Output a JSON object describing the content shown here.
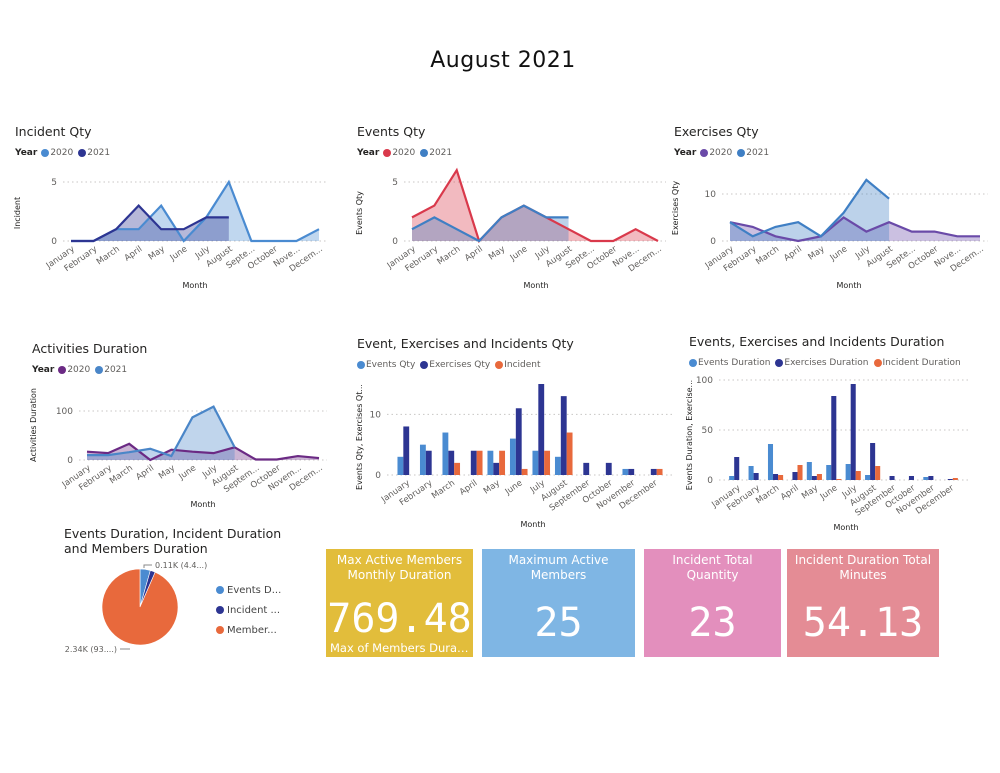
{
  "page": {
    "title": "August 2021"
  },
  "months": [
    "January",
    "February",
    "March",
    "April",
    "May",
    "June",
    "July",
    "August",
    "September",
    "October",
    "November",
    "December"
  ],
  "chart_data": [
    {
      "id": "incident",
      "type": "area",
      "title": "Incident Qty",
      "legend_title": "Year",
      "xlabel": "Month",
      "ylabel": "Incident",
      "x": [
        "January",
        "February",
        "March",
        "April",
        "May",
        "June",
        "July",
        "August",
        "Septe...",
        "October",
        "Nove...",
        "Decem..."
      ],
      "yticks": [
        0,
        5
      ],
      "ylim": [
        0,
        5
      ],
      "grid": true,
      "legend": "top-left",
      "series": [
        {
          "name": "2020",
          "color": "#4a8bd1",
          "values": [
            0,
            0,
            1,
            1,
            3,
            0,
            2,
            5,
            0,
            0,
            0,
            1
          ]
        },
        {
          "name": "2021",
          "color": "#2d3592",
          "values": [
            0,
            0,
            1,
            3,
            1,
            1,
            2,
            2,
            null,
            null,
            null,
            null
          ]
        }
      ]
    },
    {
      "id": "events",
      "type": "area",
      "title": "Events Qty",
      "legend_title": "Year",
      "xlabel": "Month",
      "ylabel": "Events Qty",
      "x": [
        "January",
        "February",
        "March",
        "April",
        "May",
        "June",
        "July",
        "August",
        "Septe...",
        "October",
        "Nove...",
        "Decem..."
      ],
      "yticks": [
        0,
        5
      ],
      "ylim": [
        0,
        5
      ],
      "grid": true,
      "legend": "top-left",
      "series": [
        {
          "name": "2020",
          "color": "#d9394b",
          "values": [
            2,
            3,
            6,
            0,
            2,
            3,
            2,
            1,
            0,
            0,
            1,
            0
          ]
        },
        {
          "name": "2021",
          "color": "#3f7fc4",
          "values": [
            1,
            2,
            1,
            0,
            2,
            3,
            2,
            2,
            null,
            null,
            null,
            null
          ]
        }
      ]
    },
    {
      "id": "exercises",
      "type": "area",
      "title": "Exercises Qty",
      "legend_title": "Year",
      "xlabel": "Month",
      "ylabel": "Exercises Qty",
      "x": [
        "January",
        "February",
        "March",
        "April",
        "May",
        "June",
        "July",
        "August",
        "Septe...",
        "October",
        "Nove...",
        "Decem..."
      ],
      "yticks": [
        0,
        10
      ],
      "ylim": [
        0,
        10
      ],
      "grid": true,
      "legend": "top-left",
      "series": [
        {
          "name": "2020",
          "color": "#6a4aa8",
          "values": [
            4,
            3,
            1,
            0,
            1,
            5,
            2,
            4,
            2,
            2,
            1,
            1
          ]
        },
        {
          "name": "2021",
          "color": "#3f7fc4",
          "values": [
            4,
            1,
            3,
            4,
            1,
            6,
            13,
            9,
            null,
            null,
            null,
            null
          ]
        }
      ]
    },
    {
      "id": "activities",
      "type": "area",
      "title": "Activities Duration",
      "legend_title": "Year",
      "xlabel": "Month",
      "ylabel": "Activities Duration",
      "x": [
        "January",
        "February",
        "March",
        "April",
        "May",
        "June",
        "July",
        "August",
        "Septem...",
        "October",
        "Novem...",
        "Decem..."
      ],
      "yticks": [
        0,
        100
      ],
      "ylim": [
        0,
        100
      ],
      "grid": true,
      "legend": "top-left",
      "series": [
        {
          "name": "2020",
          "color": "#6b2a84",
          "values": [
            17,
            14,
            33,
            0,
            21,
            17,
            14,
            26,
            1,
            1,
            8,
            4
          ]
        },
        {
          "name": "2021",
          "color": "#4a86c8",
          "values": [
            10,
            10,
            16,
            23,
            8,
            87,
            109,
            26,
            null,
            null,
            null,
            null
          ]
        }
      ]
    },
    {
      "id": "qty-bars",
      "type": "bar",
      "title": "Event, Exercises and Incidents Qty",
      "xlabel": "Month",
      "ylabel": "Events Qty, Exercises Qt...",
      "categories": [
        "January",
        "February",
        "March",
        "April",
        "May",
        "June",
        "July",
        "August",
        "September",
        "October",
        "November",
        "December"
      ],
      "yticks": [
        0,
        10
      ],
      "ylim": [
        0,
        15
      ],
      "grid": true,
      "legend": "top-left",
      "series": [
        {
          "name": "Events Qty",
          "color": "#4a8bd1",
          "values": [
            3,
            5,
            7,
            0,
            4,
            6,
            4,
            3,
            0,
            0,
            1,
            0
          ]
        },
        {
          "name": "Exercises Qty",
          "color": "#2d3592",
          "values": [
            8,
            4,
            4,
            4,
            2,
            11,
            15,
            13,
            2,
            2,
            1,
            1
          ]
        },
        {
          "name": "Incident",
          "color": "#e8693c",
          "values": [
            0,
            0,
            2,
            4,
            4,
            1,
            4,
            7,
            0,
            0,
            0,
            1
          ]
        }
      ]
    },
    {
      "id": "duration-bars",
      "type": "bar",
      "title": "Events, Exercises and Incidents Duration",
      "xlabel": "Month",
      "ylabel": "Events Duration, Exercise...",
      "categories": [
        "January",
        "February",
        "March",
        "April",
        "May",
        "June",
        "July",
        "August",
        "September",
        "October",
        "November",
        "December"
      ],
      "yticks": [
        0,
        50,
        100
      ],
      "ylim": [
        0,
        100
      ],
      "grid": true,
      "legend": "top-left",
      "series": [
        {
          "name": "Events Duration",
          "color": "#4a8bd1",
          "values": [
            4,
            14,
            36,
            0,
            18,
            15,
            16,
            5,
            0,
            0,
            3,
            0
          ]
        },
        {
          "name": "Exercises Duration",
          "color": "#2d3592",
          "values": [
            23,
            7,
            6,
            8,
            4,
            84,
            96,
            37,
            4,
            4,
            4,
            1
          ]
        },
        {
          "name": "Incident Duration",
          "color": "#e8693c",
          "values": [
            0,
            0,
            5,
            15,
            6,
            1,
            9,
            14,
            0,
            0,
            0,
            2
          ]
        }
      ]
    },
    {
      "id": "duration-pie",
      "type": "pie",
      "title": "Events Duration, Incident Duration and Members Duration",
      "title_lines": [
        "Events Duration, Incident Duration",
        "and Members Duration"
      ],
      "legend": "right",
      "slices": [
        {
          "name": "Events Duration",
          "legend_label": "Events D...",
          "color": "#4a8bd1",
          "value": 110,
          "percent": 4.4
        },
        {
          "name": "Incident Duration",
          "legend_label": "Incident ...",
          "color": "#2d3592",
          "value": 54,
          "percent": 2.2
        },
        {
          "name": "Members Duration",
          "legend_label": "Member...",
          "color": "#e8693c",
          "value": 2340,
          "percent": 93.4
        }
      ],
      "data_labels": [
        {
          "slice": "Events Duration",
          "text": "0.11K (4.4...)"
        },
        {
          "slice": "Members Duration",
          "text": "2.34K (93....)"
        }
      ]
    }
  ],
  "cards": [
    {
      "id": "max-active-members-duration",
      "title": "Max Active Members Monthly Duration",
      "value": "769.48",
      "subtitle": "Max of Members Durati...",
      "color": "#e2bd3b"
    },
    {
      "id": "max-active-members",
      "title": "Maximum Active Members",
      "value": "25",
      "subtitle": "",
      "color": "#7fb6e4"
    },
    {
      "id": "incident-total-qty",
      "title": "Incident Total Quantity",
      "value": "23",
      "subtitle": "",
      "color": "#e38fbd"
    },
    {
      "id": "incident-duration-total",
      "title": "Incident Duration Total Minutes",
      "value": "54.13",
      "subtitle": "",
      "color": "#e48c95"
    }
  ]
}
